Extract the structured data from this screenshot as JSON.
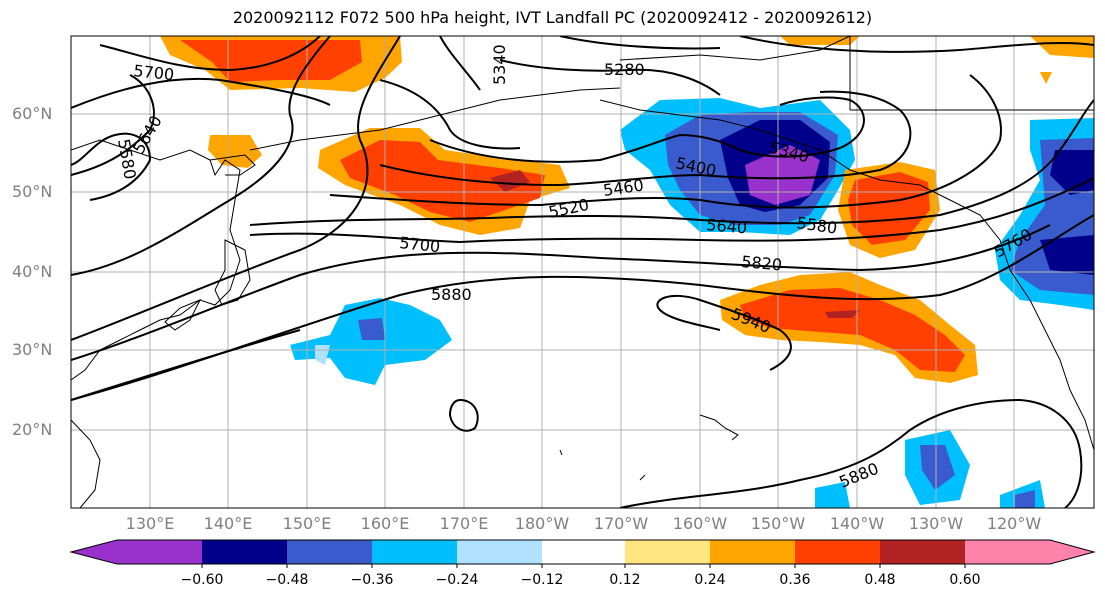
{
  "title": "2020092112 F072 500 hPa height, IVT Landfall PC (2020092412 - 2020092612)",
  "lat_labels": [
    "60°N",
    "50°N",
    "40°N",
    "30°N",
    "20°N"
  ],
  "lon_labels": [
    "130°E",
    "140°E",
    "150°E",
    "160°E",
    "170°E",
    "180°W",
    "170°W",
    "160°W",
    "150°W",
    "140°W",
    "130°W",
    "120°W"
  ],
  "colorbar": {
    "ticks": [
      "−0.60",
      "−0.48",
      "−0.36",
      "−0.24",
      "−0.12",
      "0.12",
      "0.24",
      "0.36",
      "0.48",
      "0.60"
    ],
    "colors": [
      "#9932cc",
      "#00008b",
      "#3a5bcd",
      "#00bfff",
      "#b0e2ff",
      "#ffffff",
      "#ffe680",
      "#ffa500",
      "#ff4000",
      "#b22222",
      "#ff82ab"
    ]
  },
  "contour_labels": [
    "5700",
    "5640",
    "5580",
    "5340",
    "5280",
    "5400",
    "5340",
    "5460",
    "5520",
    "5640",
    "5580",
    "5700",
    "5820",
    "5760",
    "5880",
    "5940",
    "5880"
  ]
}
